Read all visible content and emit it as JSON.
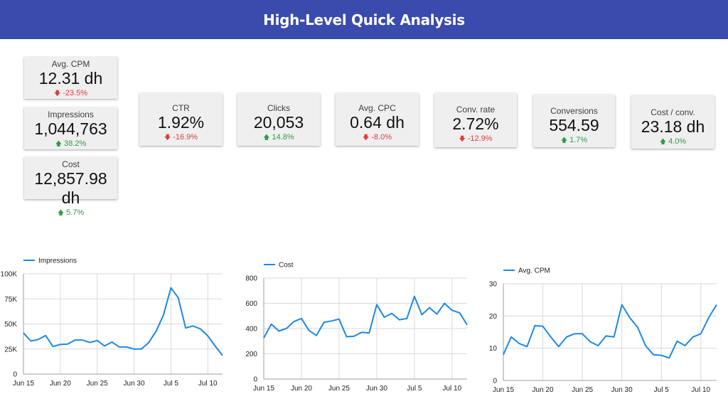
{
  "header": {
    "title": "High-Level Quick Analysis"
  },
  "kpis": [
    {
      "label": "Avg. CPM",
      "value": "12.31 dh",
      "delta": "-23.5%",
      "direction": "down"
    },
    {
      "label": "Impressions",
      "value": "1,044,763",
      "delta": "38.2%",
      "direction": "up"
    },
    {
      "label": "Cost",
      "value": "12,857.98 dh",
      "delta": "5.7%",
      "direction": "up"
    },
    {
      "label": "CTR",
      "value": "1.92%",
      "delta": "-16.9%",
      "direction": "down"
    },
    {
      "label": "Clicks",
      "value": "20,053",
      "delta": "14.8%",
      "direction": "up"
    },
    {
      "label": "Avg. CPC",
      "value": "0.64 dh",
      "delta": "-8.0%",
      "direction": "down"
    },
    {
      "label": "Conv. rate",
      "value": "2.72%",
      "delta": "-12.9%",
      "direction": "down"
    },
    {
      "label": "Conversions",
      "value": "554.59",
      "delta": "1.7%",
      "direction": "up"
    },
    {
      "label": "Cost / conv.",
      "value": "23.18 dh",
      "delta": "4.0%",
      "direction": "up"
    }
  ],
  "colors": {
    "header": "#3a4aad",
    "line": "#1e88e5",
    "up": "#2e9e3f",
    "down": "#e53935",
    "grid": "#d9d9d9"
  },
  "chart_data": [
    {
      "type": "line",
      "x_tick_labels": [
        "Jun 15",
        "Jun 20",
        "Jun 25",
        "Jun 30",
        "Jul 5",
        "Jul 10"
      ],
      "x_tick_index": [
        0,
        5,
        10,
        15,
        20,
        25
      ],
      "y_tick_labels": [
        "0",
        "25K",
        "50K",
        "75K",
        "100K"
      ],
      "ylim": [
        0,
        100000
      ],
      "grid": true,
      "legend_position": "top-left",
      "series": [
        {
          "name": "Impressions",
          "values": [
            41000,
            33000,
            34500,
            38500,
            27500,
            29500,
            30000,
            34000,
            34000,
            31500,
            33500,
            28000,
            32000,
            27000,
            27000,
            25000,
            25000,
            31500,
            43000,
            59000,
            86000,
            76000,
            46000,
            48000,
            45000,
            38000,
            28000,
            18500
          ]
        }
      ]
    },
    {
      "type": "line",
      "x_tick_labels": [
        "Jun 15",
        "Jun 20",
        "Jun 25",
        "Jun 30",
        "Jul 5",
        "Jul 10"
      ],
      "x_tick_index": [
        0,
        5,
        10,
        15,
        20,
        25
      ],
      "y_tick_labels": [
        "0",
        "200",
        "400",
        "600",
        "800"
      ],
      "ylim": [
        0,
        800
      ],
      "grid": true,
      "legend_position": "top-left",
      "series": [
        {
          "name": "Cost",
          "values": [
            325,
            435,
            380,
            400,
            455,
            480,
            385,
            345,
            450,
            460,
            475,
            335,
            340,
            370,
            365,
            590,
            490,
            520,
            470,
            480,
            655,
            510,
            565,
            515,
            600,
            545,
            525,
            430
          ]
        }
      ]
    },
    {
      "type": "line",
      "x_tick_labels": [
        "Jun 15",
        "Jun 20",
        "Jun 25",
        "Jun 30",
        "Jul 5",
        "Jul 10"
      ],
      "x_tick_index": [
        0,
        5,
        10,
        15,
        20,
        25
      ],
      "y_tick_labels": [
        "0",
        "10",
        "20",
        "30"
      ],
      "ylim": [
        0,
        30
      ],
      "grid": true,
      "legend_position": "top-left",
      "series": [
        {
          "name": "Avg. CPM",
          "values": [
            8,
            13.5,
            11.5,
            10.5,
            17,
            16.8,
            13.5,
            10.5,
            13.5,
            14.5,
            14.5,
            12,
            10.8,
            13.8,
            13.5,
            23.5,
            19.5,
            16.5,
            10.8,
            8,
            7.8,
            7,
            12.2,
            10.8,
            13.5,
            14.5,
            19.5,
            23.5
          ]
        }
      ]
    }
  ]
}
